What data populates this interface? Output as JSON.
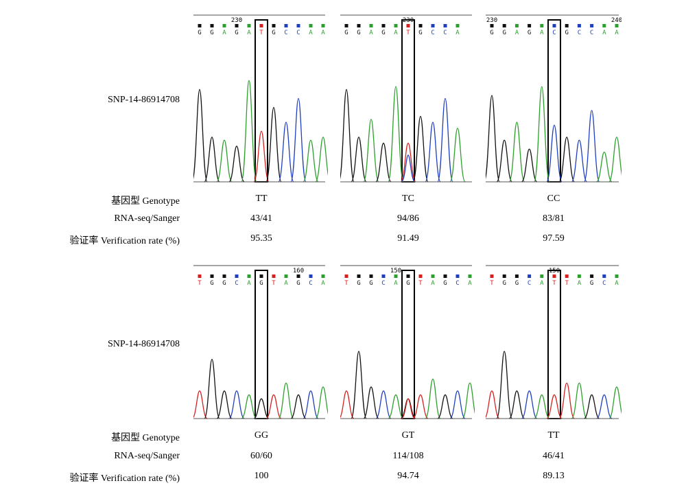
{
  "colors": {
    "A": "#2ca02c",
    "C": "#1f3fbf",
    "G": "#111111",
    "T": "#d62020"
  },
  "row_labels": {
    "genotype": "基因型 Genotype",
    "ratio": "RNA-seq/Sanger",
    "rate": "验证率 Verification rate (%)"
  },
  "panels": [
    {
      "snp": "SNP-14-86914708",
      "cols": [
        {
          "bases": [
            "G",
            "G",
            "A",
            "G",
            "A",
            "T",
            "G",
            "C",
            "C",
            "A",
            "A"
          ],
          "pos_labels": [
            {
              "text": "230",
              "at": 3
            }
          ],
          "box": 5,
          "genotype": "TT",
          "ratio": "43/41",
          "rate": "95.35"
        },
        {
          "bases": [
            "G",
            "G",
            "A",
            "G",
            "A",
            "T",
            "G",
            "C",
            "C",
            "A"
          ],
          "pos_labels": [
            {
              "text": "230",
              "at": 5
            }
          ],
          "box": 5,
          "genotype": "TC",
          "ratio": "94/86",
          "rate": "91.49"
        },
        {
          "bases": [
            "G",
            "G",
            "A",
            "G",
            "A",
            "C",
            "G",
            "C",
            "C",
            "A",
            "A"
          ],
          "pos_labels": [
            {
              "text": "230",
              "at": 0
            },
            {
              "text": "240",
              "at": 10
            }
          ],
          "box": 5,
          "genotype": "CC",
          "ratio": "83/81",
          "rate": "97.59"
        }
      ]
    },
    {
      "snp": "SNP-14-86914708",
      "cols": [
        {
          "bases": [
            "T",
            "G",
            "G",
            "C",
            "A",
            "G",
            "T",
            "A",
            "G",
            "C",
            "A"
          ],
          "pos_labels": [
            {
              "text": "160",
              "at": 8
            }
          ],
          "box": 5,
          "genotype": "GG",
          "ratio": "60/60",
          "rate": "100"
        },
        {
          "bases": [
            "T",
            "G",
            "G",
            "C",
            "A",
            "G",
            "T",
            "A",
            "G",
            "C",
            "A"
          ],
          "pos_labels": [
            {
              "text": "150",
              "at": 4
            }
          ],
          "box": 5,
          "genotype": "GT",
          "ratio": "114/108",
          "rate": "94.74"
        },
        {
          "bases": [
            "T",
            "G",
            "G",
            "C",
            "A",
            "T",
            "T",
            "A",
            "G",
            "C",
            "A"
          ],
          "pos_labels": [
            {
              "text": "150",
              "at": 5
            }
          ],
          "box": 5,
          "genotype": "TT",
          "ratio": "46/41",
          "rate": "89.13"
        }
      ]
    }
  ]
}
